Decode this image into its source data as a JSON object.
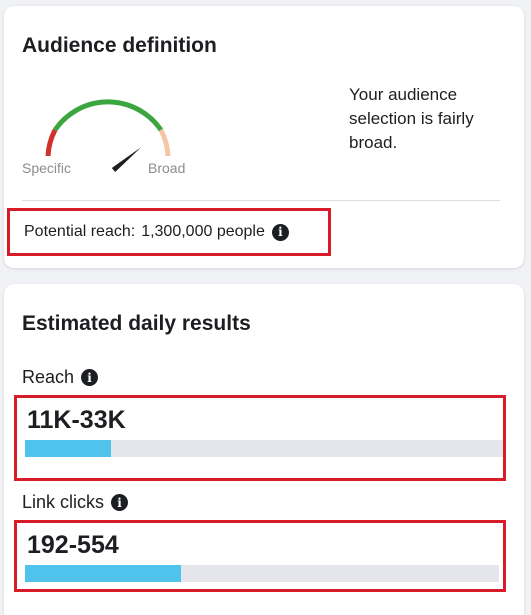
{
  "audience": {
    "title": "Audience definition",
    "gauge": {
      "label_specific": "Specific",
      "label_broad": "Broad",
      "level": 0.78,
      "colors": {
        "red": "#d0312d",
        "green": "#3ba53f",
        "peach": "#f5c6a5",
        "needle": "#1c1e21"
      }
    },
    "description": "Your audience selection is fairly broad.",
    "potential_reach_label": "Potential reach:",
    "potential_reach_value": "1,300,000 people",
    "info_icon": "info-icon"
  },
  "results": {
    "title": "Estimated daily results",
    "reach": {
      "label": "Reach",
      "value": "11K-33K",
      "fill_fraction": 0.18
    },
    "link_clicks": {
      "label": "Link clicks",
      "value": "192-554",
      "fill_fraction": 0.33
    },
    "bar_color": "#4fc3ec",
    "highlight_color": "#d81b28"
  }
}
